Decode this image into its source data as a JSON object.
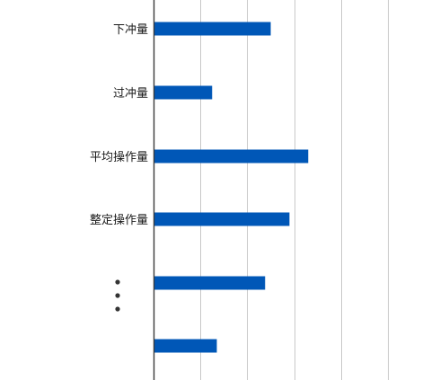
{
  "chart_data": {
    "type": "bar",
    "orientation": "horizontal",
    "title": "",
    "xlabel": "",
    "ylabel": "",
    "xlim": [
      0,
      5
    ],
    "grid": true,
    "categories": [
      "下冲量",
      "过冲量",
      "平均操作量",
      "整定操作量",
      "",
      ""
    ],
    "values": [
      2.5,
      1.25,
      3.3,
      2.9,
      2.38,
      1.35
    ],
    "bar_color": "#0057b7",
    "ellipsis_between_categories": [
      4,
      5
    ]
  }
}
